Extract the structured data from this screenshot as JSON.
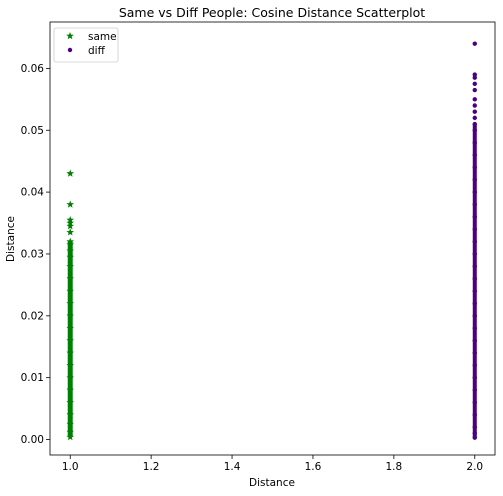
{
  "chart_data": {
    "type": "scatter",
    "title": "Same vs Diff People: Cosine Distance Scatterplot",
    "xlabel": "Distance",
    "ylabel": "Distance",
    "xlim": [
      0.95,
      2.05
    ],
    "ylim": [
      -0.0025,
      0.0675
    ],
    "x_ticks": [
      1.0,
      1.2,
      1.4,
      1.6,
      1.8,
      2.0
    ],
    "x_tick_labels": [
      "1.0",
      "1.2",
      "1.4",
      "1.6",
      "1.8",
      "2.0"
    ],
    "y_ticks": [
      0.0,
      0.01,
      0.02,
      0.03,
      0.04,
      0.05,
      0.06
    ],
    "y_tick_labels": [
      "0.00",
      "0.01",
      "0.02",
      "0.03",
      "0.04",
      "0.05",
      "0.06"
    ],
    "grid": false,
    "legend_position": "top-left",
    "series": [
      {
        "name": "same",
        "color": "#008000",
        "marker": "star",
        "x": 1.0,
        "y": [
          0.0004,
          0.0012,
          0.0025,
          0.004,
          0.006,
          0.008,
          0.01,
          0.012,
          0.014,
          0.016,
          0.018,
          0.02,
          0.022,
          0.024,
          0.026,
          0.028,
          0.0295,
          0.0305,
          0.0315,
          0.032,
          0.0335,
          0.0345,
          0.035,
          0.0355,
          0.038,
          0.043
        ]
      },
      {
        "name": "diff",
        "color": "#4b0082",
        "marker": "circle",
        "x": 2.0,
        "y": [
          0.0003,
          0.001,
          0.002,
          0.004,
          0.006,
          0.008,
          0.01,
          0.012,
          0.014,
          0.016,
          0.018,
          0.02,
          0.022,
          0.024,
          0.026,
          0.028,
          0.03,
          0.032,
          0.034,
          0.036,
          0.038,
          0.04,
          0.042,
          0.044,
          0.046,
          0.048,
          0.05,
          0.051,
          0.052,
          0.053,
          0.054,
          0.055,
          0.0565,
          0.0575,
          0.0585,
          0.059,
          0.064
        ]
      }
    ]
  }
}
